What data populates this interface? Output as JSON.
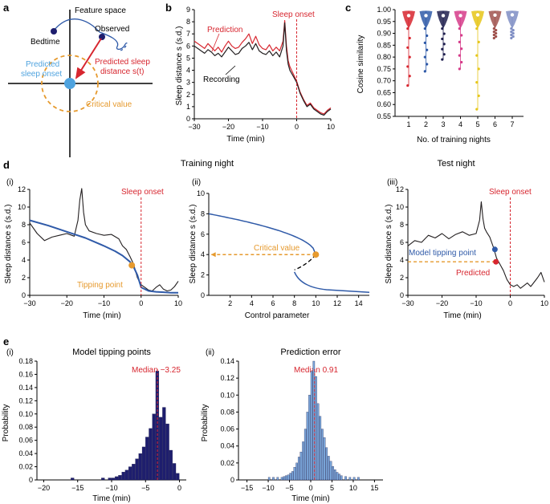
{
  "colors": {
    "red": "#d7262f",
    "blue": "#2f5aa8",
    "navy": "#1e1e6e",
    "orange": "#e69a2e",
    "lightblue": "#7aa6da",
    "lightbluecircle": "#4fa3df"
  },
  "panel_letters": {
    "a": "a",
    "b": "b",
    "c": "c",
    "d": "d",
    "e": "e"
  },
  "panel_a": {
    "feature_space": "Feature space",
    "bedtime": "Bedtime",
    "observed": "Observed",
    "predicted_sleep_onset_1": "Predicted",
    "predicted_sleep_onset_2": "sleep onset",
    "predicted_distance_1": "Predicted sleep",
    "predicted_distance_2": "distance s(t)",
    "critical_value": "Critical value"
  },
  "panel_d_titles": {
    "training": "Training night",
    "test": "Test night",
    "i": "(i)",
    "ii": "(ii)",
    "iii": "(iii)"
  },
  "panel_e_titles": {
    "i": "(i)",
    "ii": "(ii)"
  },
  "chart_data": [
    {
      "id": "b",
      "type": "line",
      "title": "",
      "xlabel": "Time (min)",
      "ylabel": "Sleep distance s (s.d.)",
      "xlim": [
        -30,
        10
      ],
      "ylim": [
        0,
        9
      ],
      "xticks": [
        "-30",
        "-20",
        "-10",
        "0",
        "10"
      ],
      "yticks": [
        "0",
        "1",
        "2",
        "3",
        "4",
        "5",
        "6",
        "7",
        "8",
        "9"
      ],
      "annotations": {
        "prediction": "Prediction",
        "recording": "Recording",
        "onset": "Sleep onset"
      },
      "series": [
        {
          "name": "Recording",
          "color": "#231f20",
          "x": [
            -30,
            -29,
            -28,
            -27,
            -26,
            -25,
            -24,
            -23,
            -22,
            -21,
            -20,
            -19,
            -18,
            -17,
            -16,
            -15,
            -14,
            -13,
            -12,
            -11,
            -10,
            -9,
            -8,
            -7,
            -6,
            -5,
            -4,
            -3.5,
            -3,
            -2.5,
            -2,
            -1,
            0,
            1,
            2,
            3,
            4,
            5,
            6,
            7,
            8,
            9,
            10
          ],
          "y": [
            6.0,
            5.8,
            5.6,
            5.4,
            5.7,
            5.5,
            5.2,
            5.4,
            5.1,
            5.5,
            5.9,
            5.6,
            5.3,
            5.4,
            5.8,
            6.0,
            6.3,
            5.7,
            6.2,
            5.6,
            5.4,
            5.3,
            5.6,
            5.2,
            5.5,
            5.1,
            6.0,
            7.9,
            5.6,
            4.5,
            4.0,
            3.5,
            3.0,
            2.1,
            1.5,
            1.0,
            1.2,
            0.8,
            0.6,
            0.4,
            0.3,
            0.6,
            0.8
          ]
        },
        {
          "name": "Prediction",
          "color": "#d7262f",
          "x": [
            -30,
            -29,
            -28,
            -27,
            -26,
            -25,
            -24,
            -23,
            -22,
            -21,
            -20,
            -19,
            -18,
            -17,
            -16,
            -15,
            -14,
            -13,
            -12,
            -11,
            -10,
            -9,
            -8,
            -7,
            -6,
            -5,
            -4,
            -3.5,
            -3,
            -2.5,
            -2,
            -1,
            0,
            1,
            2,
            3,
            4,
            5,
            6,
            7,
            8,
            9,
            10
          ],
          "y": [
            6.4,
            6.2,
            6.0,
            5.8,
            6.2,
            5.9,
            5.6,
            5.9,
            5.5,
            6.0,
            6.4,
            6.0,
            5.8,
            5.9,
            6.3,
            6.6,
            7.0,
            6.2,
            6.8,
            6.1,
            5.8,
            5.7,
            6.1,
            5.6,
            5.9,
            5.6,
            6.4,
            8.1,
            6.0,
            4.8,
            4.3,
            3.7,
            3.1,
            2.2,
            1.6,
            1.1,
            1.3,
            0.9,
            0.7,
            0.5,
            0.4,
            0.7,
            0.9
          ]
        }
      ]
    },
    {
      "id": "c",
      "type": "scatter",
      "xlabel": "No. of training nights",
      "ylabel": "Cosine similarity",
      "ylim": [
        0.55,
        1.0
      ],
      "yticks": [
        "0.55",
        "0.60",
        "0.65",
        "0.70",
        "0.75",
        "0.80",
        "0.85",
        "0.90",
        "0.95",
        "1.00"
      ],
      "categories": [
        "1",
        "2",
        "3",
        "4",
        "5",
        "6",
        "7"
      ],
      "colors": [
        "#d7262f",
        "#2f5aa8",
        "#1e1e4e",
        "#d63c8a",
        "#e6c619",
        "#a0524d",
        "#7f8ec4"
      ],
      "median": [
        0.975,
        0.975,
        0.975,
        0.975,
        0.978,
        0.977,
        0.978
      ],
      "min": [
        0.68,
        0.74,
        0.79,
        0.75,
        0.58,
        0.88,
        0.88
      ]
    },
    {
      "id": "d_i",
      "type": "line",
      "xlabel": "Time (min)",
      "ylabel": "Sleep distance s (s.d.)",
      "xlim": [
        -30,
        10
      ],
      "ylim": [
        0,
        12
      ],
      "xticks": [
        "-30",
        "-20",
        "-10",
        "0",
        "10"
      ],
      "yticks": [
        "0",
        "2",
        "4",
        "6",
        "8",
        "10",
        "12"
      ],
      "annotations": {
        "onset": "Sleep onset",
        "tipping": "Tipping point"
      },
      "tipping_point": {
        "x": -2.5,
        "y": 3.4
      },
      "series": [
        {
          "name": "Recording",
          "color": "#231f20",
          "x": [
            -30,
            -28,
            -26,
            -24,
            -22,
            -20,
            -18,
            -17,
            -16.5,
            -16,
            -15.5,
            -15,
            -14,
            -12,
            -10,
            -8,
            -6,
            -5,
            -4,
            -3,
            -2,
            -1,
            0,
            1,
            2,
            3,
            4,
            5,
            6,
            7,
            8,
            9,
            10
          ],
          "y": [
            8.2,
            7.0,
            6.2,
            6.6,
            6.8,
            7.0,
            6.7,
            8.5,
            10.8,
            12.1,
            9.4,
            8.0,
            7.3,
            7.0,
            6.8,
            6.9,
            6.4,
            5.6,
            5.2,
            4.4,
            3.5,
            2.0,
            1.2,
            0.9,
            0.6,
            0.5,
            0.9,
            1.2,
            0.7,
            0.5,
            0.6,
            1.0,
            1.6
          ]
        },
        {
          "name": "Model",
          "color": "#2f5aa8",
          "x": [
            -30,
            -25,
            -20,
            -15,
            -10,
            -7,
            -5,
            -3,
            -2,
            -1,
            0,
            2,
            4,
            6,
            8,
            10
          ],
          "y": [
            8.5,
            7.9,
            7.2,
            6.5,
            5.6,
            5.0,
            4.5,
            3.8,
            3.2,
            2.3,
            0.9,
            0.5,
            0.4,
            0.35,
            0.3,
            0.3
          ]
        }
      ]
    },
    {
      "id": "d_ii",
      "type": "line",
      "xlabel": "Control parameter",
      "ylabel": "Sleep distance s (s.d.)",
      "xlim": [
        0,
        15
      ],
      "ylim": [
        0,
        10
      ],
      "xticks": [
        "2",
        "4",
        "6",
        "8",
        "10",
        "12",
        "14"
      ],
      "yticks": [
        "0",
        "2",
        "4",
        "6",
        "8",
        "10"
      ],
      "annotations": {
        "critical": "Critical value"
      },
      "critical_point": {
        "x": 10,
        "y": 4
      }
    },
    {
      "id": "d_iii",
      "type": "line",
      "xlabel": "Time (min)",
      "ylabel": "Sleep distance s (s.d.)",
      "xlim": [
        -30,
        10
      ],
      "ylim": [
        0,
        12
      ],
      "xticks": [
        "-30",
        "-20",
        "-10",
        "0",
        "10"
      ],
      "yticks": [
        "0",
        "2",
        "4",
        "6",
        "8",
        "10",
        "12"
      ],
      "annotations": {
        "onset": "Sleep onset",
        "model_tp": "Model tipping point",
        "predicted": "Predicted"
      },
      "model_tipping_point": {
        "x": -4.5,
        "y": 5.2
      },
      "predicted_point": {
        "x": -4.2,
        "y": 3.8
      },
      "series": [
        {
          "name": "Recording",
          "color": "#231f20",
          "x": [
            -30,
            -28,
            -26,
            -24,
            -22,
            -20,
            -18,
            -16,
            -14,
            -12,
            -10,
            -9,
            -8.5,
            -8,
            -7.5,
            -7,
            -6,
            -5,
            -4,
            -3,
            -2,
            -1,
            0,
            1,
            2,
            3,
            4,
            5,
            6,
            7,
            8,
            9,
            10
          ],
          "y": [
            5.6,
            6.2,
            6.0,
            6.8,
            6.5,
            7.0,
            6.4,
            6.9,
            7.2,
            6.8,
            7.0,
            8.5,
            10.6,
            8.7,
            7.6,
            7.2,
            6.6,
            5.5,
            4.2,
            3.5,
            2.8,
            1.8,
            1.2,
            1.0,
            1.2,
            0.8,
            1.1,
            1.4,
            1.0,
            1.5,
            2.0,
            2.6,
            1.5
          ]
        }
      ]
    },
    {
      "id": "e_i",
      "type": "bar",
      "title": "Model tipping points",
      "xlabel": "Time (min)",
      "ylabel": "Probability",
      "xlim": [
        -21,
        1
      ],
      "ylim": [
        0,
        0.18
      ],
      "xticks": [
        "-20",
        "-15",
        "-10",
        "-5",
        "0"
      ],
      "yticks": [
        "0",
        "0.02",
        "0.04",
        "0.06",
        "0.08",
        "0.10",
        "0.12",
        "0.14",
        "0.16",
        "0.18"
      ],
      "annotation": "Median −3.25",
      "median": -3.25,
      "bin_width": 0.5,
      "bin_starts": [
        -16,
        -11.5,
        -10.5,
        -10,
        -9.5,
        -9,
        -8.5,
        -8,
        -7.5,
        -7,
        -6.5,
        -6,
        -5.5,
        -5,
        -4.5,
        -4,
        -3.5,
        -3,
        -2.5,
        -2,
        -1.5,
        -1,
        -0.5
      ],
      "values": [
        0.003,
        0.003,
        0.003,
        0.003,
        0.005,
        0.007,
        0.012,
        0.015,
        0.02,
        0.024,
        0.032,
        0.04,
        0.05,
        0.065,
        0.078,
        0.1,
        0.165,
        0.095,
        0.11,
        0.085,
        0.045,
        0.025,
        0.01
      ]
    },
    {
      "id": "e_ii",
      "type": "bar",
      "title": "Prediction error",
      "xlabel": "Time (min)",
      "ylabel": "Probability",
      "xlim": [
        -17,
        17
      ],
      "ylim": [
        0,
        0.14
      ],
      "xticks": [
        "-15",
        "-10",
        "-5",
        "0",
        "5",
        "10",
        "15"
      ],
      "yticks": [
        "0",
        "0.02",
        "0.04",
        "0.06",
        "0.08",
        "0.10",
        "0.12",
        "0.14"
      ],
      "annotation": "Median 0.91",
      "median": 0.91,
      "bin_width": 0.5,
      "bin_starts": [
        -10,
        -9,
        -8,
        -7,
        -6.5,
        -6,
        -5.5,
        -5,
        -4.5,
        -4,
        -3.5,
        -3,
        -2.5,
        -2,
        -1.5,
        -1,
        -0.5,
        0,
        0.5,
        1,
        1.5,
        2,
        2.5,
        3,
        3.5,
        4,
        4.5,
        5,
        5.5,
        6,
        6.5,
        7,
        8,
        9,
        10,
        11
      ],
      "values": [
        0.003,
        0.003,
        0.003,
        0.003,
        0.004,
        0.005,
        0.006,
        0.008,
        0.01,
        0.015,
        0.02,
        0.027,
        0.033,
        0.045,
        0.06,
        0.08,
        0.1,
        0.128,
        0.14,
        0.122,
        0.09,
        0.075,
        0.06,
        0.05,
        0.038,
        0.028,
        0.022,
        0.016,
        0.012,
        0.009,
        0.007,
        0.005,
        0.004,
        0.003,
        0.003,
        0.003
      ]
    }
  ]
}
